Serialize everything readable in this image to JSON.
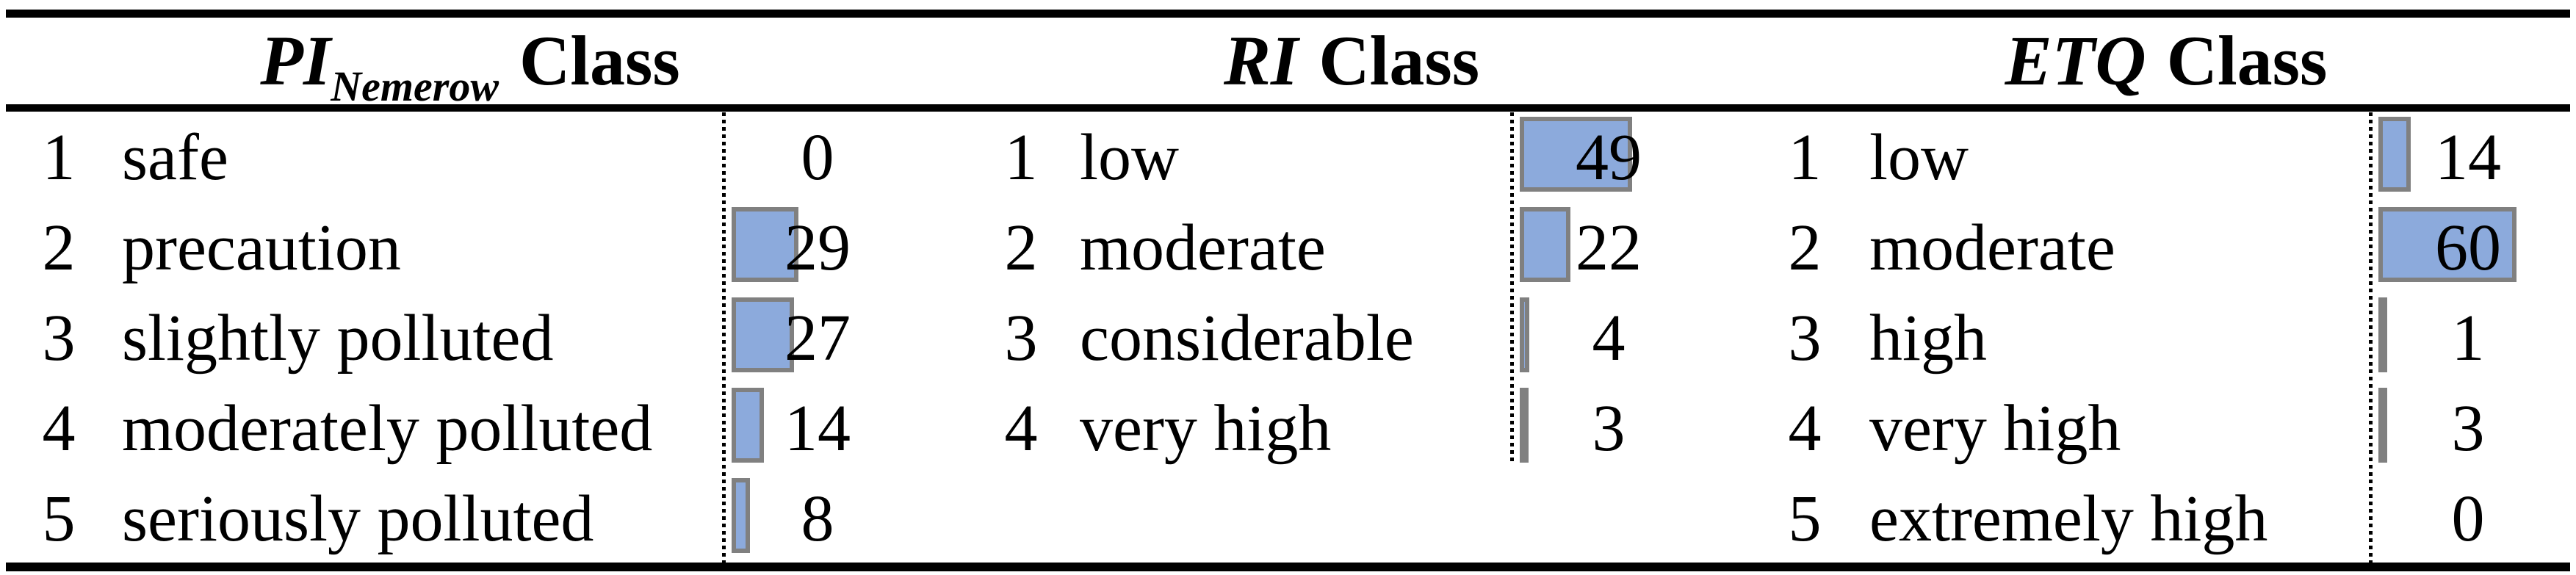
{
  "table": {
    "columns": [
      {
        "header": {
          "symbol": "PI",
          "subscript": "Nemerow",
          "suffix": "Class"
        },
        "rows": [
          {
            "index": 1,
            "label": "safe",
            "value": 0
          },
          {
            "index": 2,
            "label": "precaution",
            "value": 29
          },
          {
            "index": 3,
            "label": "slightly polluted",
            "value": 27
          },
          {
            "index": 4,
            "label": "moderately polluted",
            "value": 14
          },
          {
            "index": 5,
            "label": "seriously polluted",
            "value": 8
          }
        ]
      },
      {
        "header": {
          "symbol": "RI",
          "subscript": "",
          "suffix": "Class"
        },
        "rows": [
          {
            "index": 1,
            "label": "low",
            "value": 49
          },
          {
            "index": 2,
            "label": "moderate",
            "value": 22
          },
          {
            "index": 3,
            "label": "considerable",
            "value": 4
          },
          {
            "index": 4,
            "label": "very high",
            "value": 3
          }
        ]
      },
      {
        "header": {
          "symbol": "ETQ",
          "subscript": "",
          "suffix": "Class"
        },
        "rows": [
          {
            "index": 1,
            "label": "low",
            "value": 14
          },
          {
            "index": 2,
            "label": "moderate",
            "value": 60
          },
          {
            "index": 3,
            "label": "high",
            "value": 1
          },
          {
            "index": 4,
            "label": "very high",
            "value": 3
          },
          {
            "index": 5,
            "label": "extremely high",
            "value": 0
          }
        ]
      }
    ]
  },
  "colors": {
    "bar_fill": "#8CAADC",
    "bar_border": "#808080",
    "rule": "#000000",
    "background": "#ffffff"
  },
  "chart_data": [
    {
      "type": "bar",
      "orientation": "horizontal",
      "title": "PI_Nemerow Class",
      "categories": [
        "safe",
        "precaution",
        "slightly polluted",
        "moderately polluted",
        "seriously polluted"
      ],
      "values": [
        0,
        29,
        27,
        14,
        8
      ],
      "xlabel": "",
      "ylabel": "",
      "xlim": [
        0,
        100
      ],
      "grid": false,
      "legend": false
    },
    {
      "type": "bar",
      "orientation": "horizontal",
      "title": "RI Class",
      "categories": [
        "low",
        "moderate",
        "considerable",
        "very high"
      ],
      "values": [
        49,
        22,
        4,
        3
      ],
      "xlabel": "",
      "ylabel": "",
      "xlim": [
        0,
        100
      ],
      "grid": false,
      "legend": false
    },
    {
      "type": "bar",
      "orientation": "horizontal",
      "title": "ETQ Class",
      "categories": [
        "low",
        "moderate",
        "high",
        "very high",
        "extremely high"
      ],
      "values": [
        14,
        60,
        1,
        3,
        0
      ],
      "xlabel": "",
      "ylabel": "",
      "xlim": [
        0,
        100
      ],
      "grid": false,
      "legend": false
    }
  ]
}
